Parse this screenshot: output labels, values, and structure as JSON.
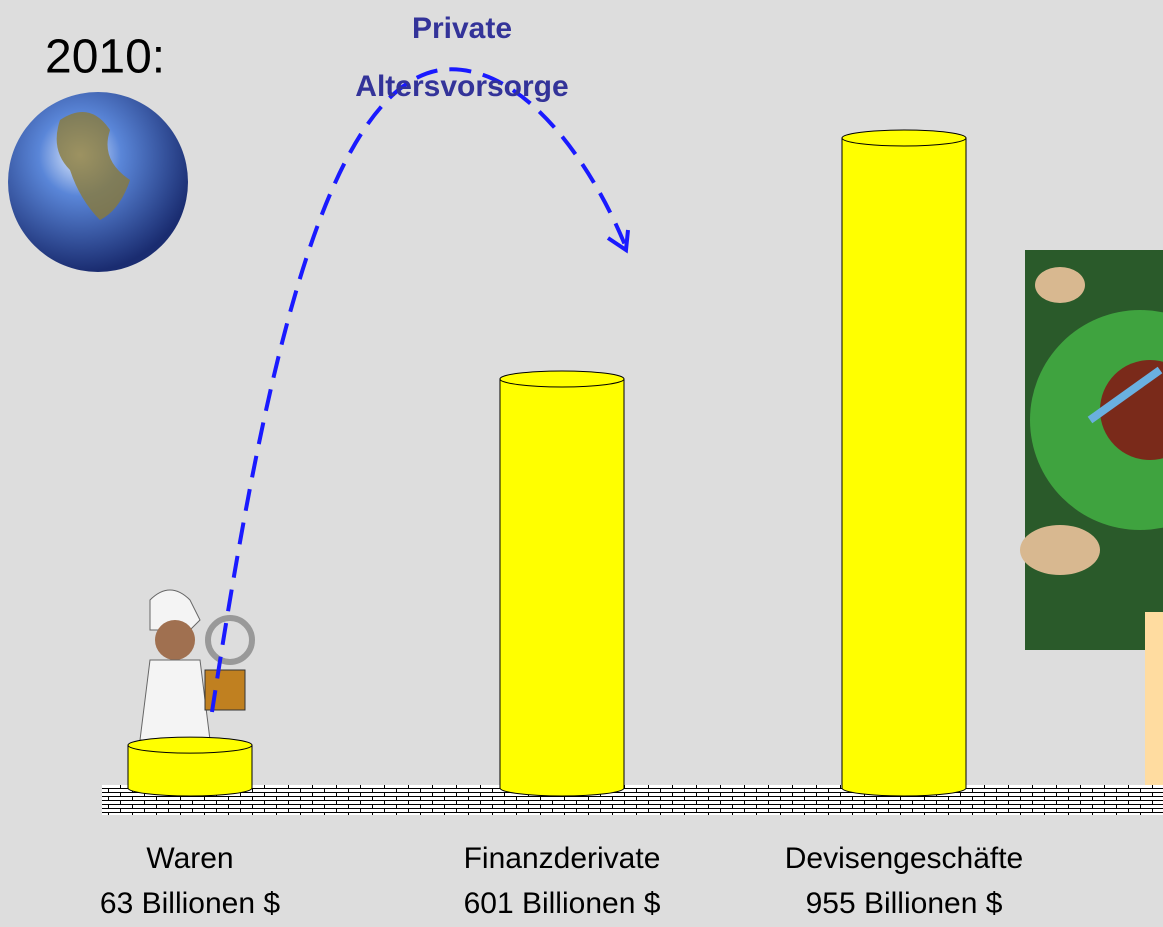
{
  "chart_data": {
    "type": "bar",
    "title": "2010:",
    "annotation": [
      "Private",
      "Altersvorsorge"
    ],
    "categories": [
      "Waren",
      "Finanzderivate",
      "Devisengeschäfte"
    ],
    "values": [
      63,
      601,
      955
    ],
    "value_labels": [
      "63 Billionen $",
      "601 Billionen $",
      "955 Billionen $"
    ],
    "color": "#ffff00"
  }
}
